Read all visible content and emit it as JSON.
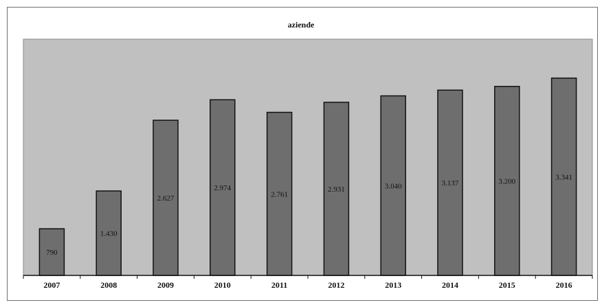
{
  "chart_data": {
    "type": "bar",
    "title": "aziende",
    "categories": [
      "2007",
      "2008",
      "2009",
      "2010",
      "2011",
      "2012",
      "2013",
      "2014",
      "2015",
      "2016"
    ],
    "values": [
      790,
      1430,
      2627,
      2974,
      2761,
      2931,
      3040,
      3137,
      3200,
      3341
    ],
    "data_labels": [
      "790",
      "1.430",
      "2.627",
      "2.974",
      "2.761",
      "2.931",
      "3.040",
      "3.137",
      "3.200",
      "3.341"
    ],
    "xlabel": "",
    "ylabel": "",
    "ylim": [
      0,
      4000
    ],
    "grid": false,
    "legend": "none",
    "colors": {
      "plot_area": "#c0c0c0",
      "bar": "#6e6e6e",
      "bar_border": "#111111",
      "axis": "#111111"
    }
  }
}
